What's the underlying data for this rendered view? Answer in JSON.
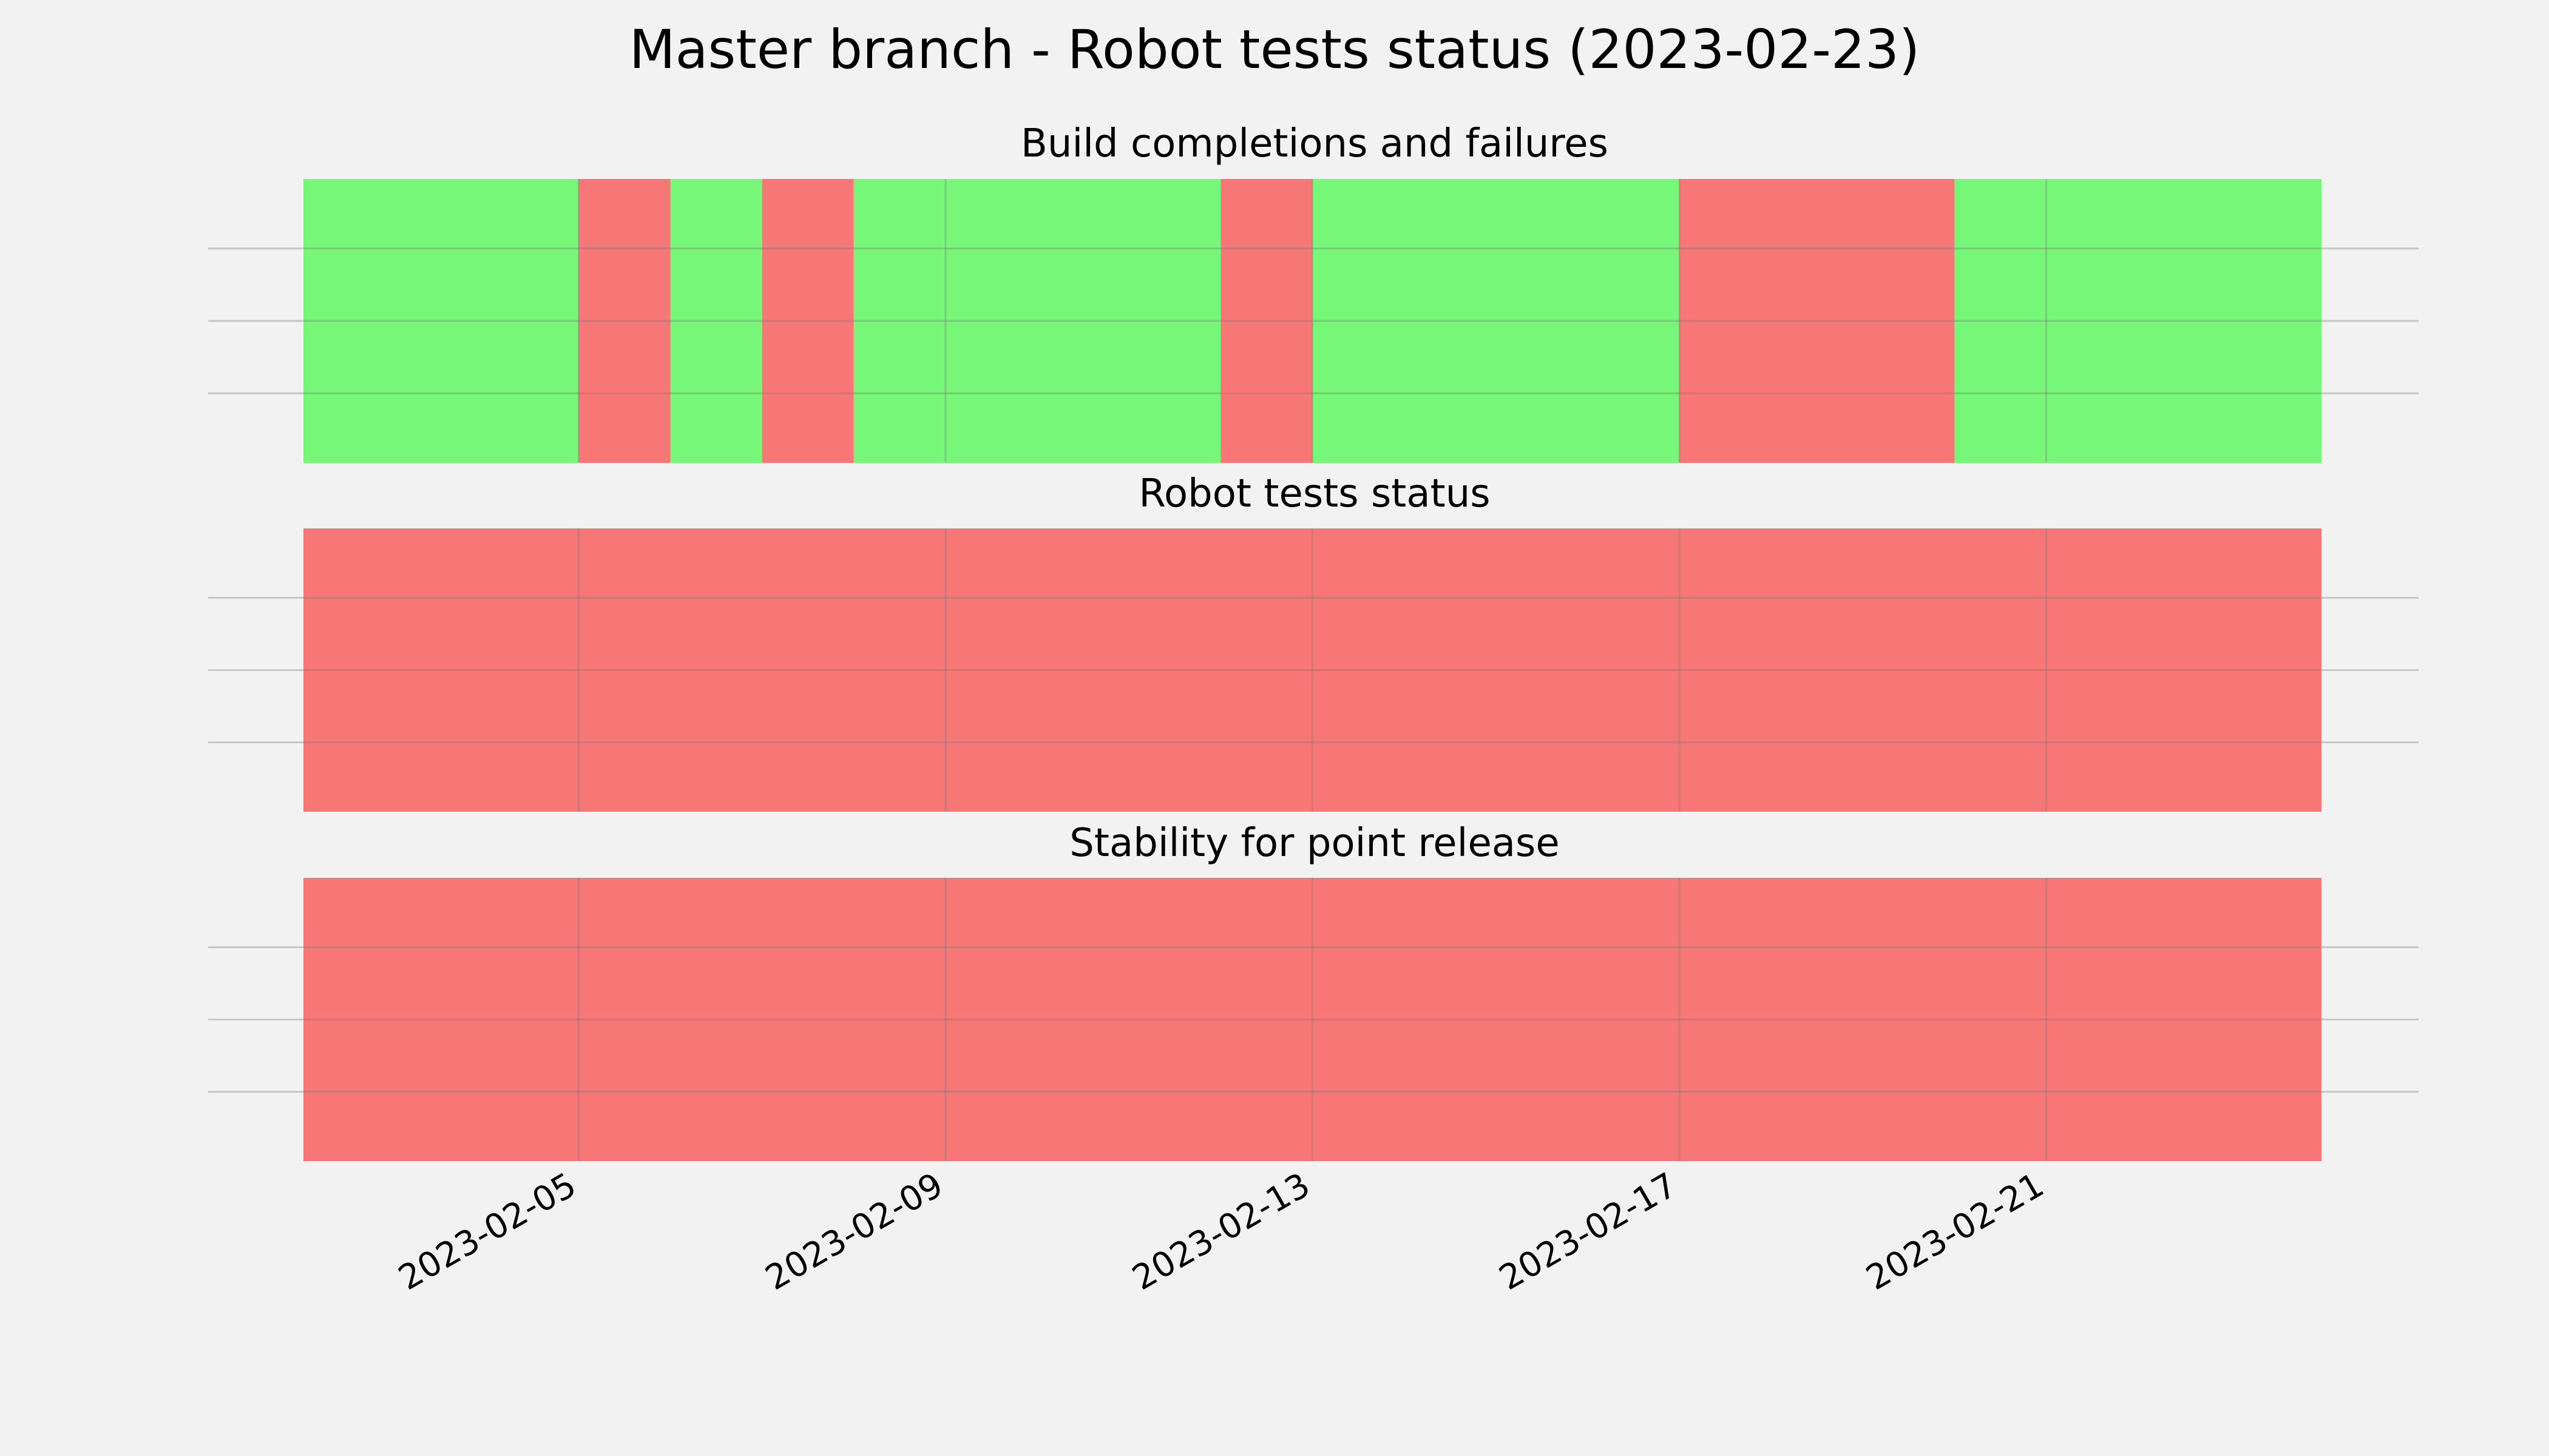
{
  "chart_data": {
    "type": "timeline",
    "title": "Master branch - Robot tests status (2023-02-23)",
    "xlim": [
      "2023-02-02",
      "2023-02-24"
    ],
    "x_ticks": [
      "2023-02-05",
      "2023-02-09",
      "2023-02-13",
      "2023-02-17",
      "2023-02-21"
    ],
    "grid": true,
    "colors": {
      "success": "#77f777",
      "failure": "#f77777",
      "gridline": "#cccccc",
      "background": "#f2f2f2"
    },
    "panels": [
      {
        "title": "Build completions and failures",
        "segments": [
          {
            "start": "2023-02-02",
            "end": "2023-02-05",
            "status": "success"
          },
          {
            "start": "2023-02-05",
            "end": "2023-02-06",
            "status": "failure"
          },
          {
            "start": "2023-02-06",
            "end": "2023-02-07",
            "status": "success"
          },
          {
            "start": "2023-02-07",
            "end": "2023-02-08",
            "status": "failure"
          },
          {
            "start": "2023-02-08",
            "end": "2023-02-12",
            "status": "success"
          },
          {
            "start": "2023-02-12",
            "end": "2023-02-13",
            "status": "failure"
          },
          {
            "start": "2023-02-13",
            "end": "2023-02-17",
            "status": "success"
          },
          {
            "start": "2023-02-17",
            "end": "2023-02-20",
            "status": "failure"
          },
          {
            "start": "2023-02-20",
            "end": "2023-02-24",
            "status": "success"
          }
        ]
      },
      {
        "title": "Robot tests status",
        "segments": [
          {
            "start": "2023-02-02",
            "end": "2023-02-24",
            "status": "failure"
          }
        ]
      },
      {
        "title": "Stability for point release",
        "segments": [
          {
            "start": "2023-02-02",
            "end": "2023-02-24",
            "status": "failure"
          }
        ]
      }
    ]
  }
}
